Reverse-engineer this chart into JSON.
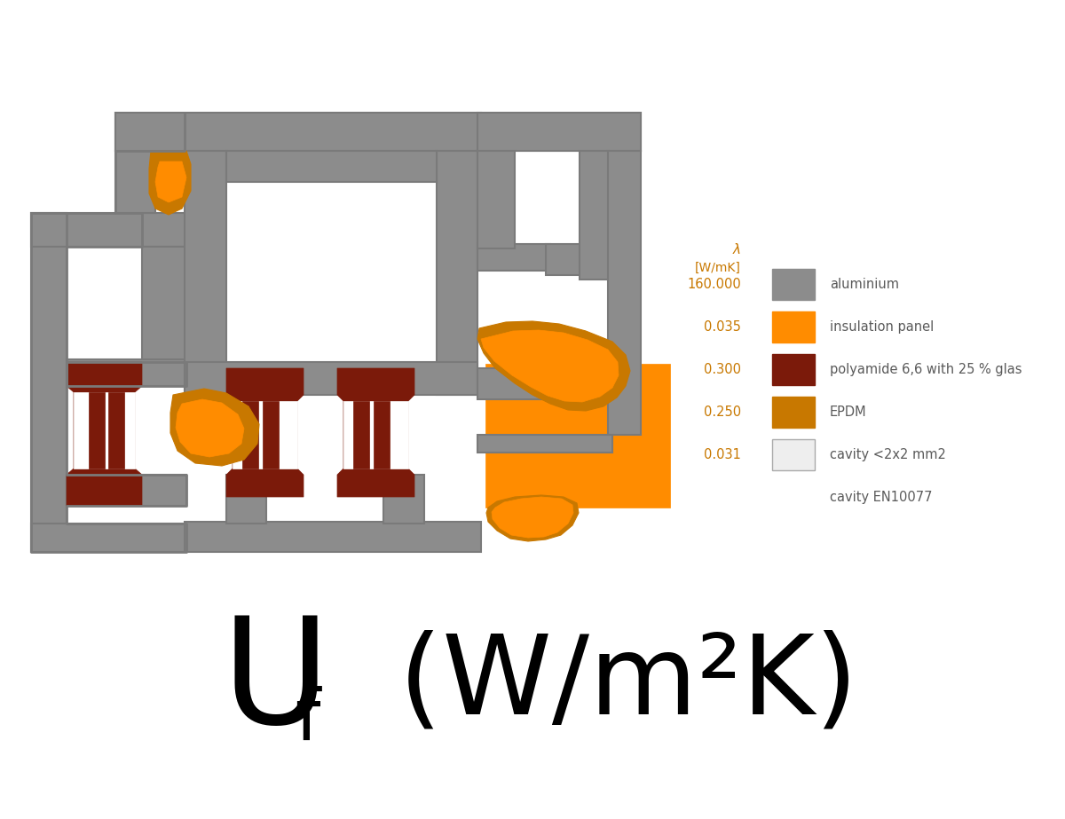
{
  "col_alu": "#8c8c8c",
  "col_ins": "#ff8c00",
  "col_poly": "#7b1a0a",
  "col_epdm": "#c87800",
  "col_cavity": "#eeeeee",
  "col_outline": "#7a7a7a",
  "legend_title_line1": "λ",
  "legend_title_line2": "[W/mK]",
  "legend_items": [
    {
      "value": "160.000",
      "color": "#8c8c8c",
      "label": "aluminium"
    },
    {
      "value": "0.035",
      "color": "#ff8c00",
      "label": "insulation panel"
    },
    {
      "value": "0.300",
      "color": "#7b1a0a",
      "label": "polyamide 6,6 with 25 % glas"
    },
    {
      "value": "0.250",
      "color": "#c87800",
      "label": "EPDM"
    },
    {
      "value": "0.031",
      "color": "#eeeeee",
      "label": "cavity <2x2 mm2"
    },
    {
      "value": "",
      "color": null,
      "label": "cavity EN10077"
    }
  ],
  "legend_value_color": "#c87800",
  "legend_label_color": "#5a5a5a",
  "background_color": "#ffffff",
  "fig_width": 12.0,
  "fig_height": 9.23,
  "dpi": 100
}
